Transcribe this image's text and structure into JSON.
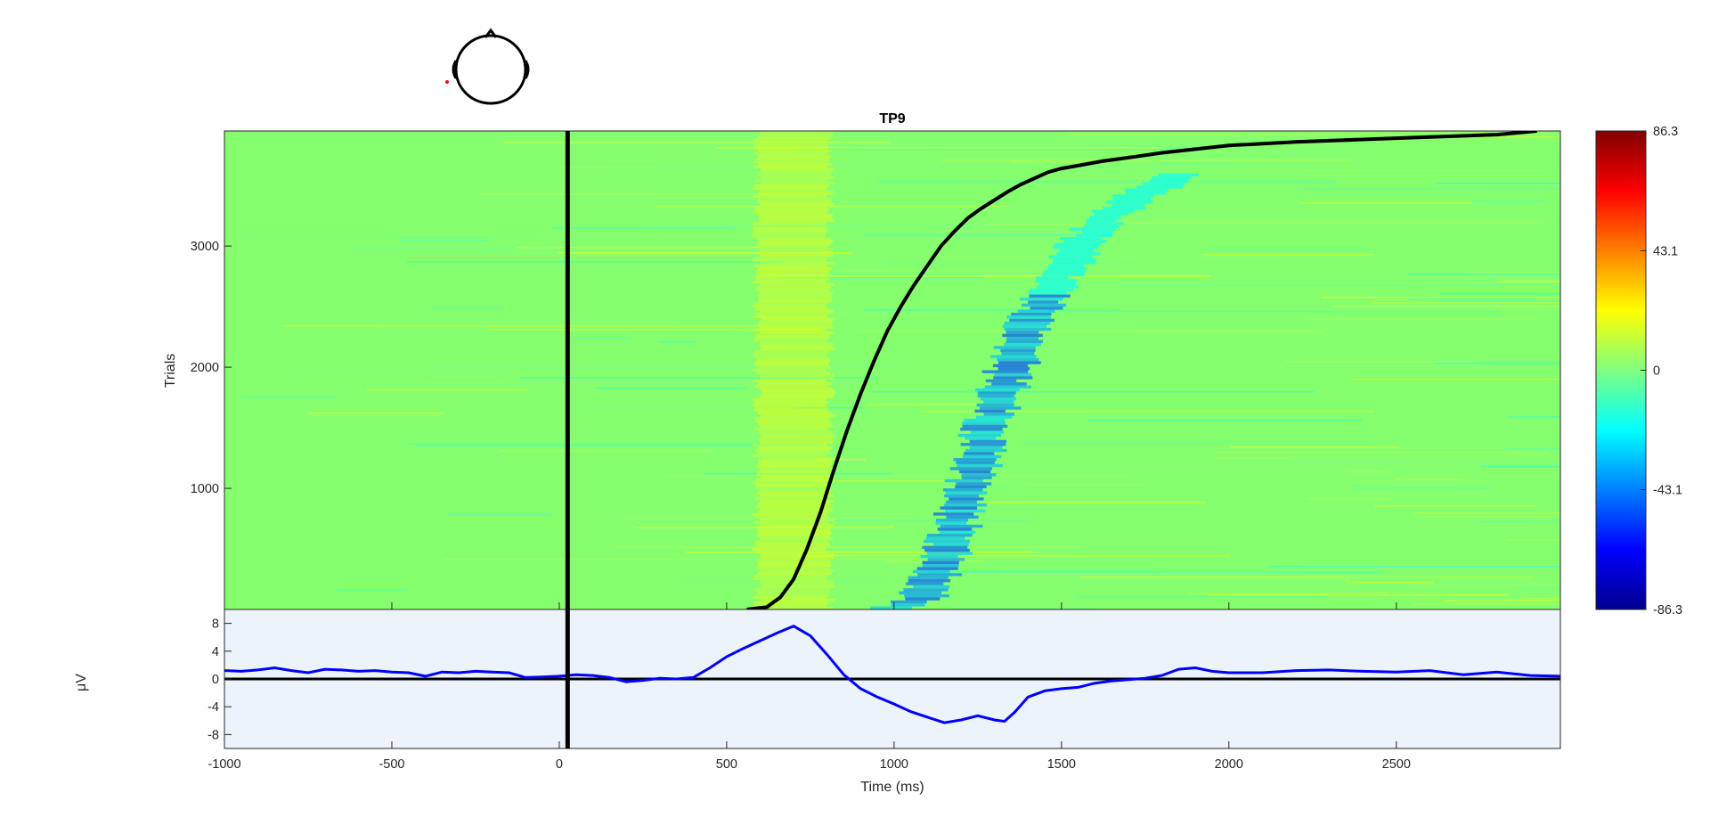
{
  "chart_data": [
    {
      "type": "heatmap",
      "title": "TP9",
      "ylabel": "Trials",
      "xlabel": "",
      "xlim": [
        -1000,
        2990
      ],
      "ylim": [
        0,
        3950
      ],
      "y_ticks": [
        1000,
        2000,
        3000
      ],
      "x_ticks": [
        -1000,
        -500,
        0,
        500,
        1000,
        1500,
        2000,
        2500
      ],
      "colormap": "jet",
      "colorbar": {
        "range": [
          -86.3,
          86.3
        ],
        "ticks": [
          86.3,
          43.1,
          0,
          -43.1,
          -86.3
        ],
        "tick_labels": [
          "86.3",
          "43.1",
          "0",
          "-43.1",
          "-86.3"
        ]
      },
      "stimulus_line_x": 25,
      "sorting_curve": {
        "x": [
          560,
          620,
          660,
          700,
          740,
          780,
          820,
          860,
          900,
          940,
          980,
          1020,
          1060,
          1100,
          1140,
          1180,
          1220,
          1260,
          1300,
          1340,
          1380,
          1420,
          1460,
          1500,
          1560,
          1620,
          1700,
          1800,
          1900,
          2000,
          2200,
          2400,
          2600,
          2800,
          2920
        ],
        "y": [
          0,
          20,
          100,
          250,
          500,
          800,
          1150,
          1480,
          1780,
          2050,
          2300,
          2500,
          2680,
          2840,
          3000,
          3120,
          3230,
          3310,
          3380,
          3450,
          3510,
          3560,
          3610,
          3640,
          3670,
          3700,
          3730,
          3770,
          3800,
          3830,
          3860,
          3880,
          3900,
          3920,
          3950
        ]
      },
      "pattern": {
        "positive_band": {
          "x_center": 700,
          "x_halfwidth": 110,
          "amplitude": 20
        },
        "negative_band": {
          "trial_range": [
            0,
            3600
          ],
          "x_start": 1110,
          "x_end": 1680,
          "amplitude": -40
        }
      }
    },
    {
      "type": "line",
      "title": "",
      "xlabel": "Time (ms)",
      "ylabel": "μV",
      "xlim": [
        -1000,
        2990
      ],
      "ylim": [
        -10,
        10
      ],
      "y_ticks": [
        8,
        4,
        0,
        -4,
        -8
      ],
      "x_ticks": [
        -1000,
        -500,
        0,
        500,
        1000,
        1500,
        2000,
        2500
      ],
      "stimulus_line_x": 25,
      "background_color": "#ecf3fb",
      "series": [
        {
          "color": "#0000ff",
          "x": [
            -1000,
            -950,
            -900,
            -850,
            -800,
            -750,
            -700,
            -650,
            -600,
            -550,
            -500,
            -450,
            -400,
            -350,
            -300,
            -250,
            -200,
            -150,
            -100,
            -50,
            0,
            50,
            100,
            150,
            200,
            250,
            300,
            350,
            400,
            450,
            500,
            550,
            600,
            650,
            700,
            750,
            800,
            850,
            900,
            950,
            1000,
            1050,
            1100,
            1150,
            1200,
            1250,
            1300,
            1330,
            1360,
            1400,
            1450,
            1500,
            1550,
            1600,
            1650,
            1700,
            1750,
            1800,
            1850,
            1900,
            1950,
            2000,
            2100,
            2200,
            2300,
            2400,
            2500,
            2600,
            2700,
            2800,
            2900,
            2990
          ],
          "y": [
            1.2,
            1.1,
            1.3,
            1.6,
            1.2,
            0.9,
            1.4,
            1.3,
            1.1,
            1.2,
            1.0,
            0.9,
            0.4,
            1.0,
            0.9,
            1.1,
            1.0,
            0.9,
            0.2,
            0.3,
            0.4,
            0.6,
            0.5,
            0.2,
            -0.4,
            -0.2,
            0.1,
            0.0,
            0.2,
            1.6,
            3.2,
            4.4,
            5.5,
            6.6,
            7.6,
            6.2,
            3.5,
            0.6,
            -1.4,
            -2.6,
            -3.6,
            -4.7,
            -5.5,
            -6.3,
            -5.9,
            -5.3,
            -5.9,
            -6.1,
            -4.8,
            -2.6,
            -1.7,
            -1.4,
            -1.2,
            -0.6,
            -0.3,
            -0.1,
            0.1,
            0.5,
            1.4,
            1.6,
            1.1,
            0.9,
            0.9,
            1.2,
            1.3,
            1.1,
            1.0,
            1.2,
            0.6,
            1.0,
            0.5,
            0.4
          ]
        }
      ],
      "zero_line": 0
    }
  ],
  "head_icon": {
    "name": "head-scalp-icon",
    "electrode_color": "#ff0000"
  }
}
